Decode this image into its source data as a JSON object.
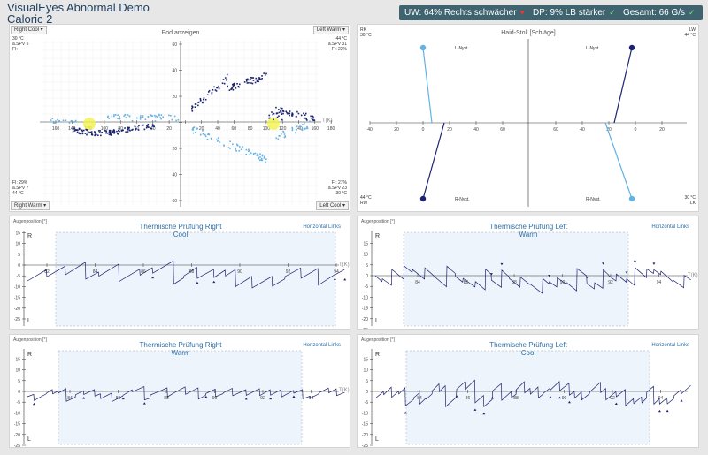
{
  "app": {
    "title_line1": "VisualEyes Abnormal Demo",
    "title_line2": "Caloric 2"
  },
  "badges": [
    {
      "text": "UW: 64% Rechts schwächer",
      "icon": "heart-icon",
      "icon_char": "♥",
      "icon_color": "#e03a3a"
    },
    {
      "text": "DP: 9% LB stärker",
      "icon": "check-icon",
      "icon_char": "✓",
      "icon_color": "#7ddc8c"
    },
    {
      "text": "Gesamt: 66  G/s",
      "icon": "check-icon",
      "icon_char": "✓",
      "icon_color": "#7ddc8c"
    }
  ],
  "colors": {
    "dark_series": "#1b2370",
    "light_series": "#63b2e6",
    "accent": "#2c6fa8",
    "highlight": "#f0f050"
  },
  "pod": {
    "title": "Pod anzeigen",
    "dropdowns": {
      "top_left": "Right Cool",
      "top_right": "Left Warm",
      "bottom_left": "Right Warm",
      "bottom_right": "Left Cool"
    },
    "info_tl": [
      "30 °C",
      "a.SPV 5",
      "FI: -"
    ],
    "info_tr": [
      "44 °C",
      "a.SPV 31",
      "FI: 22%"
    ],
    "info_bl": [
      "FI: 29%",
      "a.SPV 7",
      "44 °C"
    ],
    "info_br": [
      "FI: 27%",
      "a.SPV 23",
      "30 °C"
    ],
    "tx_label": "T(K)",
    "x_ticks": [
      "160",
      "140",
      "120",
      "100",
      "80",
      "60",
      "40",
      "20",
      "",
      "20",
      "40",
      "60",
      "80",
      "100",
      "120",
      "140",
      "160",
      "180"
    ],
    "y_ticks": [
      "60",
      "40",
      "20",
      "",
      "20",
      "40",
      "60"
    ]
  },
  "haid": {
    "title": "Haid-Stoll [Schläge]",
    "corners": {
      "tl_label": "RK",
      "tl_temp": "30 °C",
      "tr_label": "LW",
      "tr_temp": "44 °C",
      "bl_label": "RW",
      "bl_temp": "44 °C",
      "br_label": "LK",
      "br_temp": "30 °C"
    },
    "nyst": {
      "l1": "L-Nyst.",
      "l2": "L-Nyst.",
      "r1": "R-Nyst.",
      "r2": "R-Nyst."
    },
    "x_ticks": [
      "60",
      "40",
      "20",
      "0",
      "20",
      "40",
      "60",
      "60",
      "40",
      "20",
      "0",
      "20",
      "40"
    ]
  },
  "charts": [
    {
      "title": "Thermische Prüfung Right",
      "subtitle": "Cool",
      "link": "Horizontal Links",
      "ylabel": "Augenposition [°]",
      "yticks": [
        "15",
        "10",
        "5",
        "0",
        "-5",
        "-10",
        "-15",
        "-20",
        "-25"
      ],
      "xticks": [
        "82",
        "84",
        "86",
        "88",
        "90",
        "92",
        "94"
      ],
      "tx": "T(K)",
      "R": "R",
      "L": "L"
    },
    {
      "title": "Thermische Prüfung Left",
      "subtitle": "Warm",
      "link": "Horizontal Links",
      "ylabel": "Augenposition [°]",
      "yticks": [
        "15",
        "10",
        "5",
        "0",
        "-5",
        "-10",
        "-15",
        "-20",
        "-25"
      ],
      "xticks": [
        "84",
        "86",
        "88",
        "90",
        "92",
        "94"
      ],
      "tx": "T(K)",
      "R": "R",
      "L": "L"
    },
    {
      "title": "Thermische Prüfung Right",
      "subtitle": "Warm",
      "link": "Horizontal Links",
      "ylabel": "Augenposition [°]",
      "yticks": [
        "15",
        "10",
        "5",
        "0",
        "-5",
        "-10",
        "-15",
        "-20",
        "-25"
      ],
      "xticks": [
        "84",
        "86",
        "88",
        "90",
        "92",
        "94"
      ],
      "tx": "T(K)",
      "R": "R",
      "L": "L"
    },
    {
      "title": "Thermische Prüfung Left",
      "subtitle": "Cool",
      "link": "Horizontal Links",
      "ylabel": "Augenposition [°]",
      "yticks": [
        "15",
        "10",
        "5",
        "0",
        "-5",
        "-10",
        "-15",
        "-20",
        "-25"
      ],
      "xticks": [
        "84",
        "86",
        "88",
        "90",
        "92",
        "94",
        "96"
      ],
      "tx": "T(K)",
      "R": "R",
      "L": "L"
    }
  ]
}
